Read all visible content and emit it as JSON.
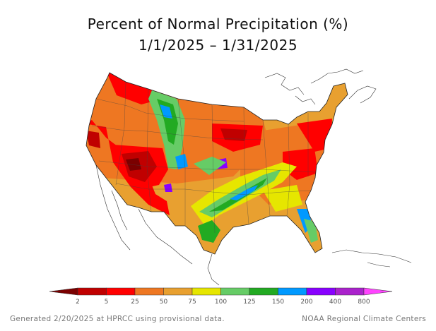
{
  "title": {
    "line1": "Percent of Normal Precipitation (%)",
    "line2": "1/1/2025 – 1/31/2025"
  },
  "legend": {
    "bins": [
      {
        "color": "#7a0000"
      },
      {
        "color": "#c00000",
        "label": "2"
      },
      {
        "color": "#ff0000",
        "label": "5"
      },
      {
        "color": "#ee7722",
        "label": "25"
      },
      {
        "color": "#e8a030",
        "label": "50"
      },
      {
        "color": "#e6e600",
        "label": "75"
      },
      {
        "color": "#66cc66",
        "label": "100"
      },
      {
        "color": "#22aa22",
        "label": "125"
      },
      {
        "color": "#0099ff",
        "label": "150"
      },
      {
        "color": "#8800ff",
        "label": "200"
      },
      {
        "color": "#aa22cc",
        "label": "400"
      },
      {
        "color": "#ff44ff",
        "label": "800"
      }
    ]
  },
  "footer": {
    "left": "Generated 2/20/2025 at HPRCC using provisional data.",
    "right": "NOAA Regional Climate Centers"
  }
}
